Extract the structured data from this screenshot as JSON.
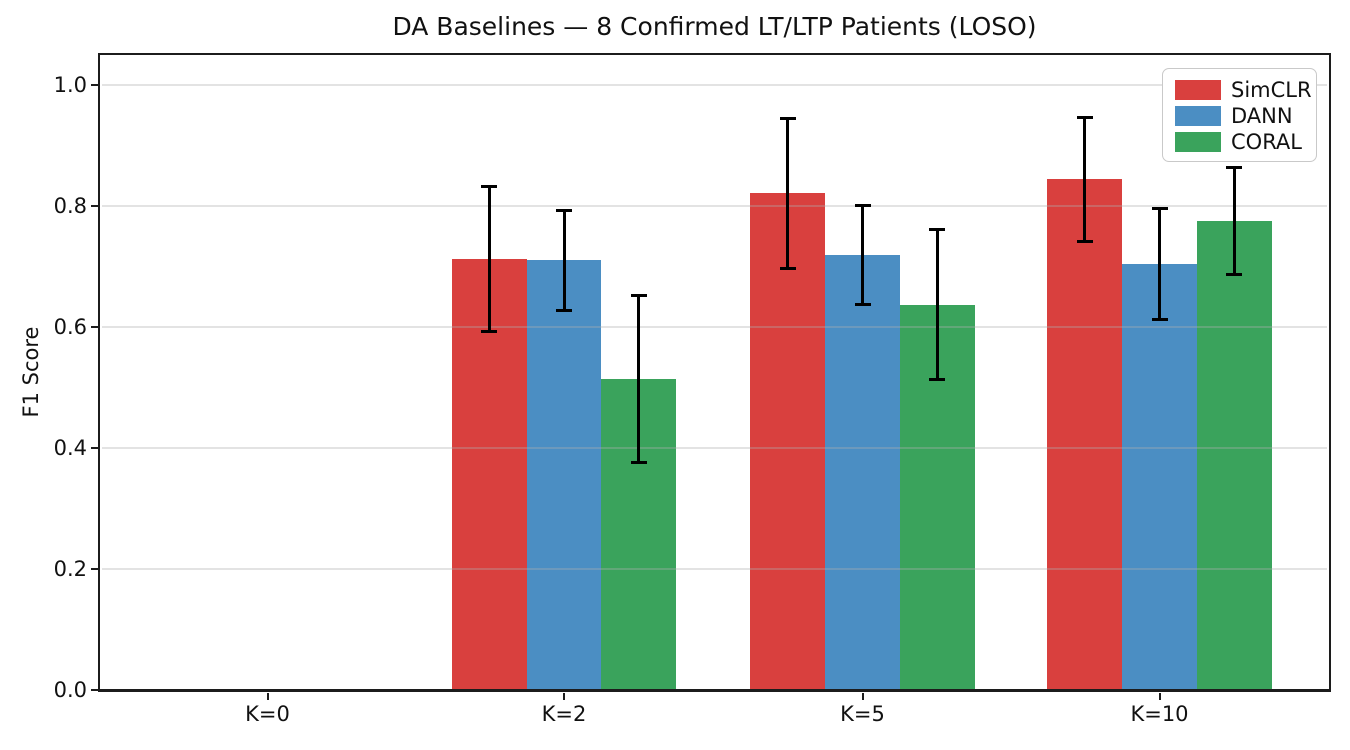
{
  "title": "DA Baselines — 8 Confirmed LT/LTP Patients (LOSO)",
  "chart_data": {
    "type": "bar",
    "title": "DA Baselines — 8 Confirmed LT/LTP Patients (LOSO)",
    "xlabel": "",
    "ylabel": "F1 Score",
    "categories": [
      "K=0",
      "K=2",
      "K=5",
      "K=10"
    ],
    "series": [
      {
        "name": "SimCLR",
        "color": "#d9403e",
        "values": [
          0,
          0.713,
          0.821,
          0.844
        ],
        "errors": [
          0,
          0.12,
          0.124,
          0.103
        ]
      },
      {
        "name": "DANN",
        "color": "#4b8ec3",
        "values": [
          0,
          0.71,
          0.719,
          0.704
        ],
        "errors": [
          0,
          0.083,
          0.082,
          0.092
        ]
      },
      {
        "name": "CORAL",
        "color": "#3aa35c",
        "values": [
          0,
          0.514,
          0.637,
          0.775
        ],
        "errors": [
          0,
          0.138,
          0.124,
          0.088
        ]
      }
    ],
    "yticks": [
      0.0,
      0.2,
      0.4,
      0.6,
      0.8,
      1.0
    ],
    "ylim": [
      0,
      1.05
    ],
    "grid": true,
    "grid_over_bars": true,
    "error_bar_color": "#000000",
    "legend_position": "upper right"
  }
}
